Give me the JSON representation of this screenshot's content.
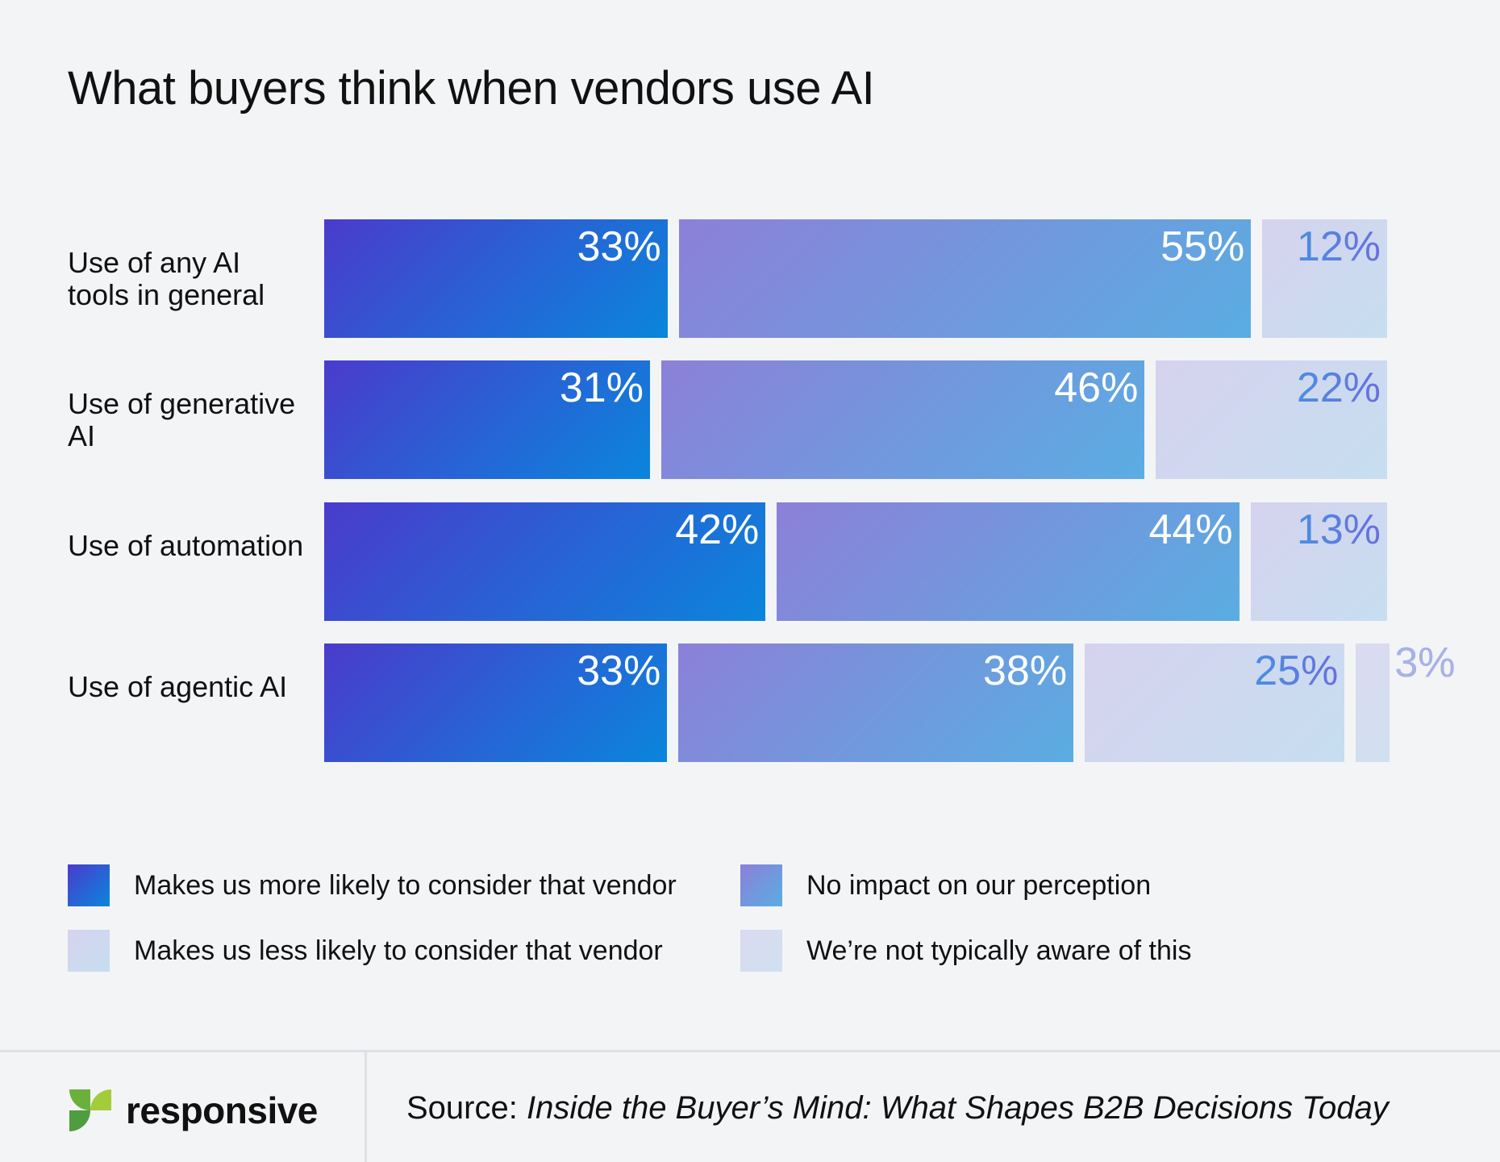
{
  "title": "What buyers think when vendors use AI",
  "chart_data": {
    "type": "bar",
    "orientation": "horizontal",
    "stacked": true,
    "title": "What buyers think when vendors use AI",
    "categories": [
      "Use of any AI tools in general",
      "Use of generative AI",
      "Use of automation",
      "Use of agentic AI"
    ],
    "series": [
      {
        "name": "Makes us more likely to consider that vendor",
        "values": [
          33,
          31,
          42,
          33
        ],
        "color": "#2f55d4"
      },
      {
        "name": "No impact on our perception",
        "values": [
          55,
          46,
          44,
          38
        ],
        "color": "#7a8ee0"
      },
      {
        "name": "Makes us less likely to consider that vendor",
        "values": [
          12,
          22,
          13,
          25
        ],
        "color": "#c9d2ee"
      },
      {
        "name": "We’re not typically aware of this",
        "values": [
          0,
          0,
          0,
          3
        ],
        "color": "#d7dff0"
      }
    ],
    "grid": false,
    "legend_position": "bottom"
  },
  "labels": [
    "33%",
    "55%",
    "12%",
    "31%",
    "46%",
    "22%",
    "42%",
    "44%",
    "13%",
    "33%",
    "38%",
    "25%",
    "3%"
  ],
  "footer": {
    "brand": "responsive",
    "source_prefix": "Source:",
    "source_title": "Inside the Buyer’s Mind: What Shapes B2B Decisions Today"
  }
}
